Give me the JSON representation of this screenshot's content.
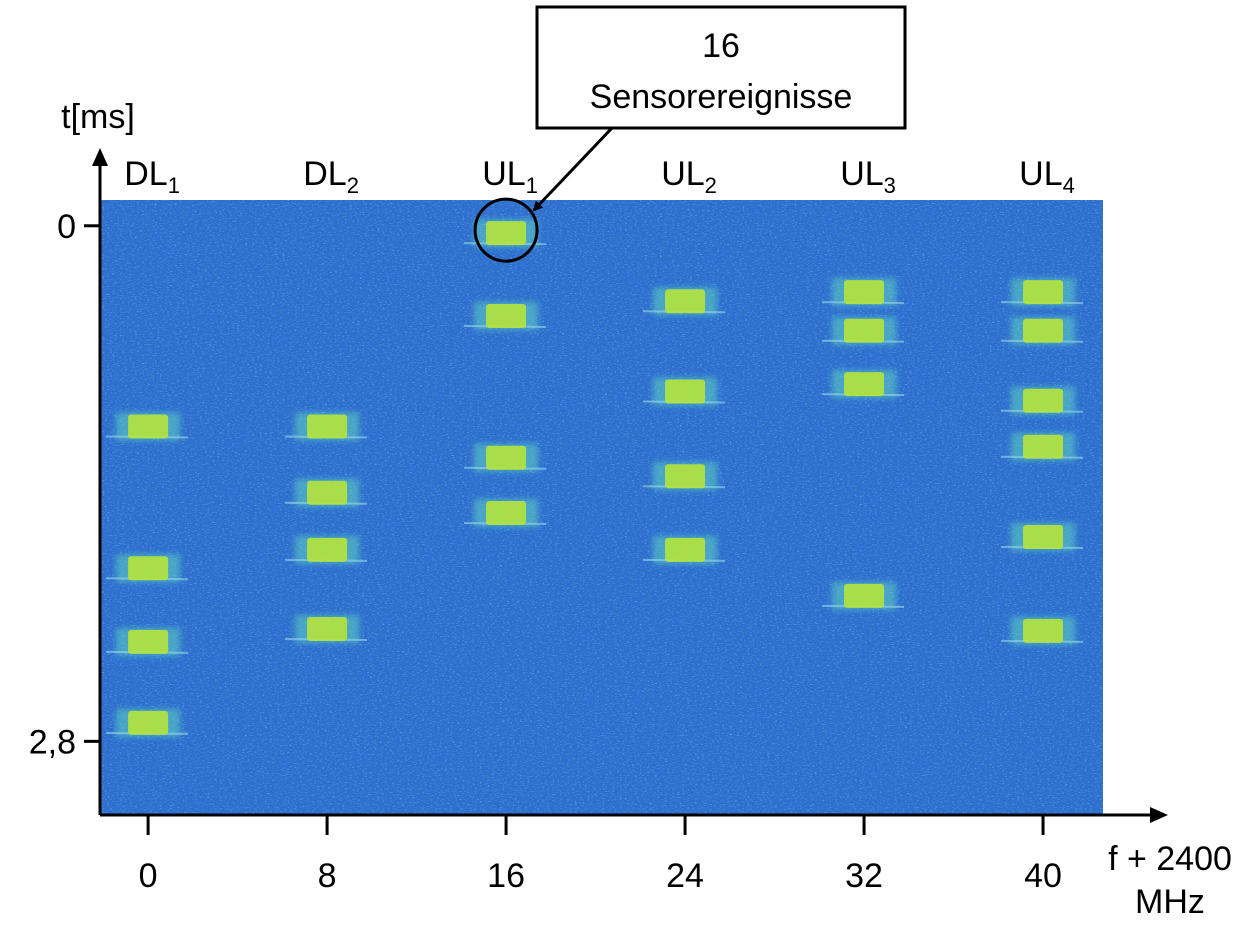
{
  "chart_data": {
    "type": "scatter",
    "y_label": "t[ms]",
    "x_label": [
      "f + 2400",
      "MHz"
    ],
    "annotation": [
      "16",
      "Sensorereignisse"
    ],
    "channels": [
      {
        "label": "DL",
        "index": "1",
        "x": 0
      },
      {
        "label": "DL",
        "index": "2",
        "x": 8
      },
      {
        "label": "UL",
        "index": "1",
        "x": 16
      },
      {
        "label": "UL",
        "index": "2",
        "x": 24
      },
      {
        "label": "UL",
        "index": "3",
        "x": 32
      },
      {
        "label": "UL",
        "index": "4",
        "x": 40
      }
    ],
    "x": [
      16,
      16,
      16,
      16,
      0,
      0,
      0,
      0,
      8,
      8,
      8,
      8,
      24,
      24,
      24,
      24,
      32,
      32,
      32,
      32,
      40,
      40,
      40,
      40,
      40,
      40
    ],
    "values": [
      0.04,
      0.49,
      1.26,
      1.56,
      1.09,
      1.86,
      2.26,
      2.7,
      1.09,
      1.45,
      1.76,
      2.19,
      0.41,
      0.9,
      1.36,
      1.76,
      0.36,
      0.57,
      0.86,
      2.01,
      0.36,
      0.57,
      0.95,
      1.2,
      1.69,
      2.2
    ],
    "xlim": [
      -2.15,
      42.68
    ],
    "ylim": [
      -0.14,
      3.2
    ],
    "y_inverted": true,
    "xticks": [
      0,
      8,
      16,
      24,
      32,
      40
    ],
    "yticks": [
      0,
      {
        "value": 2.8,
        "label": "2,8"
      }
    ],
    "background_color": "#2d6fd2",
    "event_color": "#b4e43c"
  }
}
